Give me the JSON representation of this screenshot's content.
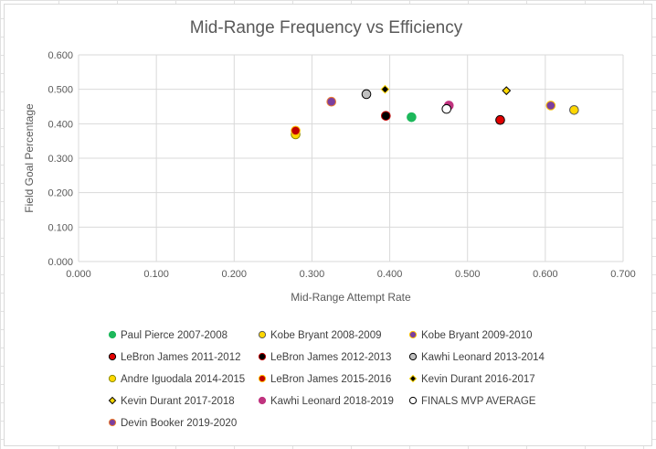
{
  "chart_data": {
    "type": "scatter",
    "title": "Mid-Range Frequency vs Efficiency",
    "xlabel": "Mid-Range Attempt Rate",
    "ylabel": "Field Goal Percentage",
    "xlim": [
      0,
      0.7
    ],
    "ylim": [
      0,
      0.6
    ],
    "x_ticks": [
      "0.000",
      "0.100",
      "0.200",
      "0.300",
      "0.400",
      "0.500",
      "0.600",
      "0.700"
    ],
    "y_ticks": [
      "0.000",
      "0.100",
      "0.200",
      "0.300",
      "0.400",
      "0.500",
      "0.600"
    ],
    "grid": true,
    "legend_position": "bottom",
    "series": [
      {
        "name": "Paul Pierce 2007-2008",
        "x": 0.428,
        "y": 0.419,
        "marker": "circle",
        "fill": "#1db85b",
        "stroke": "#1db85b"
      },
      {
        "name": "Kobe Bryant 2008-2009",
        "x": 0.637,
        "y": 0.44,
        "marker": "circle",
        "fill": "#ffd700",
        "stroke": "#5b5b5b"
      },
      {
        "name": "Kobe Bryant 2009-2010",
        "x": 0.607,
        "y": 0.453,
        "marker": "circle",
        "fill": "#7b3f9e",
        "stroke": "#ffc000"
      },
      {
        "name": "LeBron James 2011-2012",
        "x": 0.542,
        "y": 0.411,
        "marker": "circle",
        "fill": "#e00000",
        "stroke": "#000000"
      },
      {
        "name": "LeBron James 2012-2013",
        "x": 0.395,
        "y": 0.423,
        "marker": "circle",
        "fill": "#000000",
        "stroke": "#c00000"
      },
      {
        "name": "Kawhi Leonard 2013-2014",
        "x": 0.37,
        "y": 0.486,
        "marker": "circle",
        "fill": "#c0c0c0",
        "stroke": "#000000"
      },
      {
        "name": "Andre Iguodala 2014-2015",
        "x": 0.279,
        "y": 0.369,
        "marker": "circle",
        "fill": "#ffd700",
        "stroke": "#8c8c00"
      },
      {
        "name": "LeBron James 2015-2016",
        "x": 0.279,
        "y": 0.38,
        "marker": "circle",
        "fill": "#c00000",
        "stroke": "#ffc000"
      },
      {
        "name": "Kevin Durant 2016-2017",
        "x": 0.394,
        "y": 0.5,
        "marker": "diamond",
        "fill": "#000000",
        "stroke": "#ffd700"
      },
      {
        "name": "Kevin Durant 2017-2018",
        "x": 0.55,
        "y": 0.496,
        "marker": "diamond",
        "fill": "#ffd700",
        "stroke": "#000000"
      },
      {
        "name": "Kawhi Leonard 2018-2019",
        "x": 0.476,
        "y": 0.453,
        "marker": "circle",
        "fill": "#c0337f",
        "stroke": "#c0337f"
      },
      {
        "name": "FINALS MVP AVERAGE",
        "x": 0.473,
        "y": 0.443,
        "marker": "circle",
        "fill": "#ffffff",
        "stroke": "#000000"
      },
      {
        "name": "Devin Booker 2019-2020",
        "x": 0.325,
        "y": 0.464,
        "marker": "circle",
        "fill": "#7b3f9e",
        "stroke": "#ed7d31"
      }
    ]
  }
}
